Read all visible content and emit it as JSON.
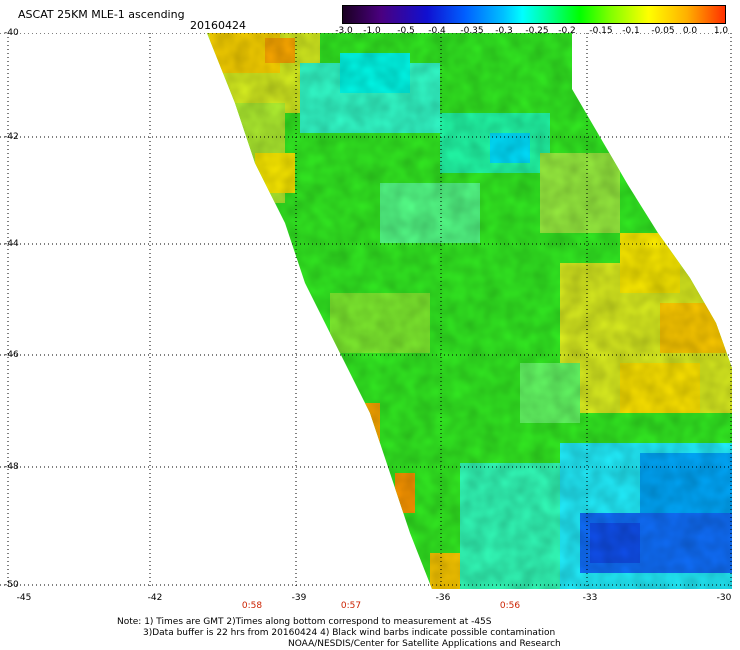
{
  "header": {
    "title": "ASCAT 25KM MLE-1 ascending",
    "date": "20160424"
  },
  "colorbar": {
    "labels": [
      "-3.0",
      "-1.0",
      "-0.5",
      "-0.4",
      "-0.35",
      "-0.3",
      "-0.25",
      "-0.2",
      "-0.15",
      "-0.1",
      "-0.05",
      "0.0",
      "1.0"
    ]
  },
  "axes": {
    "lat_labels": [
      "-40",
      "-42",
      "-44",
      "-46",
      "-48",
      "-50"
    ],
    "lon_labels": [
      "-45",
      "-42",
      "-39",
      "-36",
      "-33",
      "-30"
    ]
  },
  "times": [
    "0:58",
    "0:57",
    "0:56"
  ],
  "notes": {
    "line1": "Note: 1) Times are GMT 2)Times along bottom correspond to measurement at -45S",
    "line2": "3)Data buffer is 22 hrs from 20160424 4) Black wind barbs indicate possible contamination",
    "line3": "NOAA/NESDIS/Center for Satellite Applications and Research"
  },
  "colors": {
    "grid": "#000000",
    "time_text": "#cc2200"
  }
}
